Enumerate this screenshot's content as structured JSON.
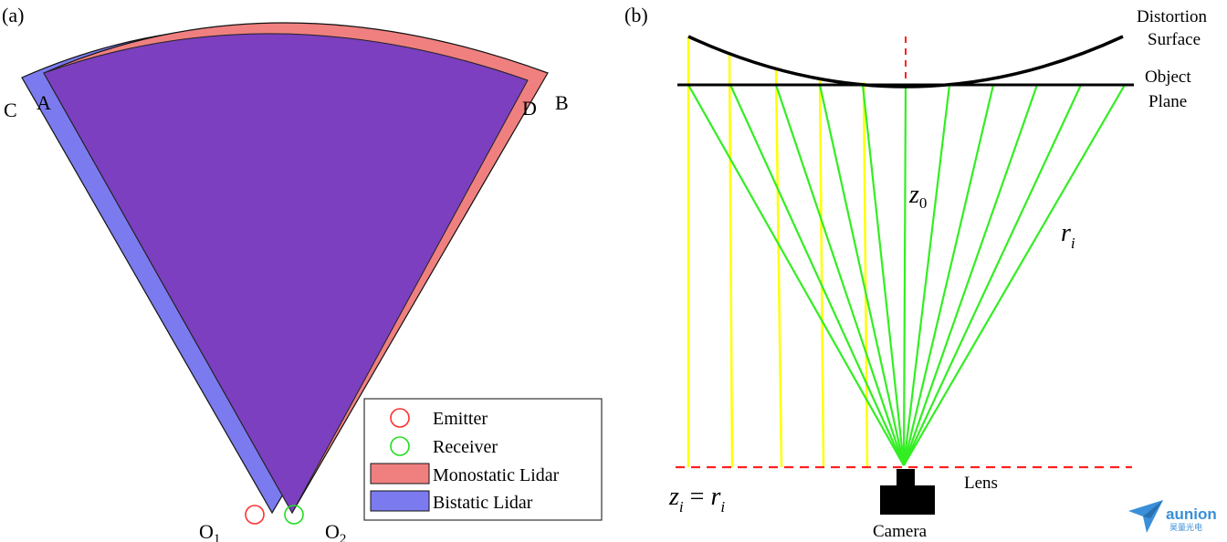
{
  "panel_a": {
    "label": "(a)",
    "point_labels": {
      "C": "C",
      "A": "A",
      "D": "D",
      "B": "B"
    },
    "origin_labels": {
      "o1": "O",
      "o1_sub": "1",
      "o2": "O",
      "o2_sub": "2"
    },
    "legend": {
      "items": [
        {
          "key": "emitter",
          "label": "Emitter"
        },
        {
          "key": "receiver",
          "label": "Receiver"
        },
        {
          "key": "monostatic",
          "label": "Monostatic Lidar"
        },
        {
          "key": "bistatic",
          "label": "Bistatic Lidar"
        }
      ]
    },
    "colors": {
      "monostatic": "#f08080",
      "bistatic": "#7b7bef",
      "overlap": "#7b3fbf",
      "emitter": "#ff3030",
      "receiver": "#22dd22"
    }
  },
  "panel_b": {
    "label": "(b)",
    "distortion_surface": [
      "Distortion",
      "Surface"
    ],
    "object_plane": [
      "Object",
      "Plane"
    ],
    "z0": "z",
    "z0_sub": "0",
    "ri": "r",
    "ri_sub": "i",
    "eq_left": "z",
    "eq_left_sub": "i",
    "eq_mid": " = ",
    "eq_right": "r",
    "eq_right_sub": "i",
    "lens_label": "Lens",
    "camera_label": "Camera",
    "colors": {
      "yellow": "#ffff00",
      "green": "#33ee22",
      "red_dash": "#ff2020",
      "black": "#000000"
    }
  },
  "watermark": {
    "brand": "aunion",
    "subtitle": "昊量光电",
    "color": "#3a8fd8"
  }
}
